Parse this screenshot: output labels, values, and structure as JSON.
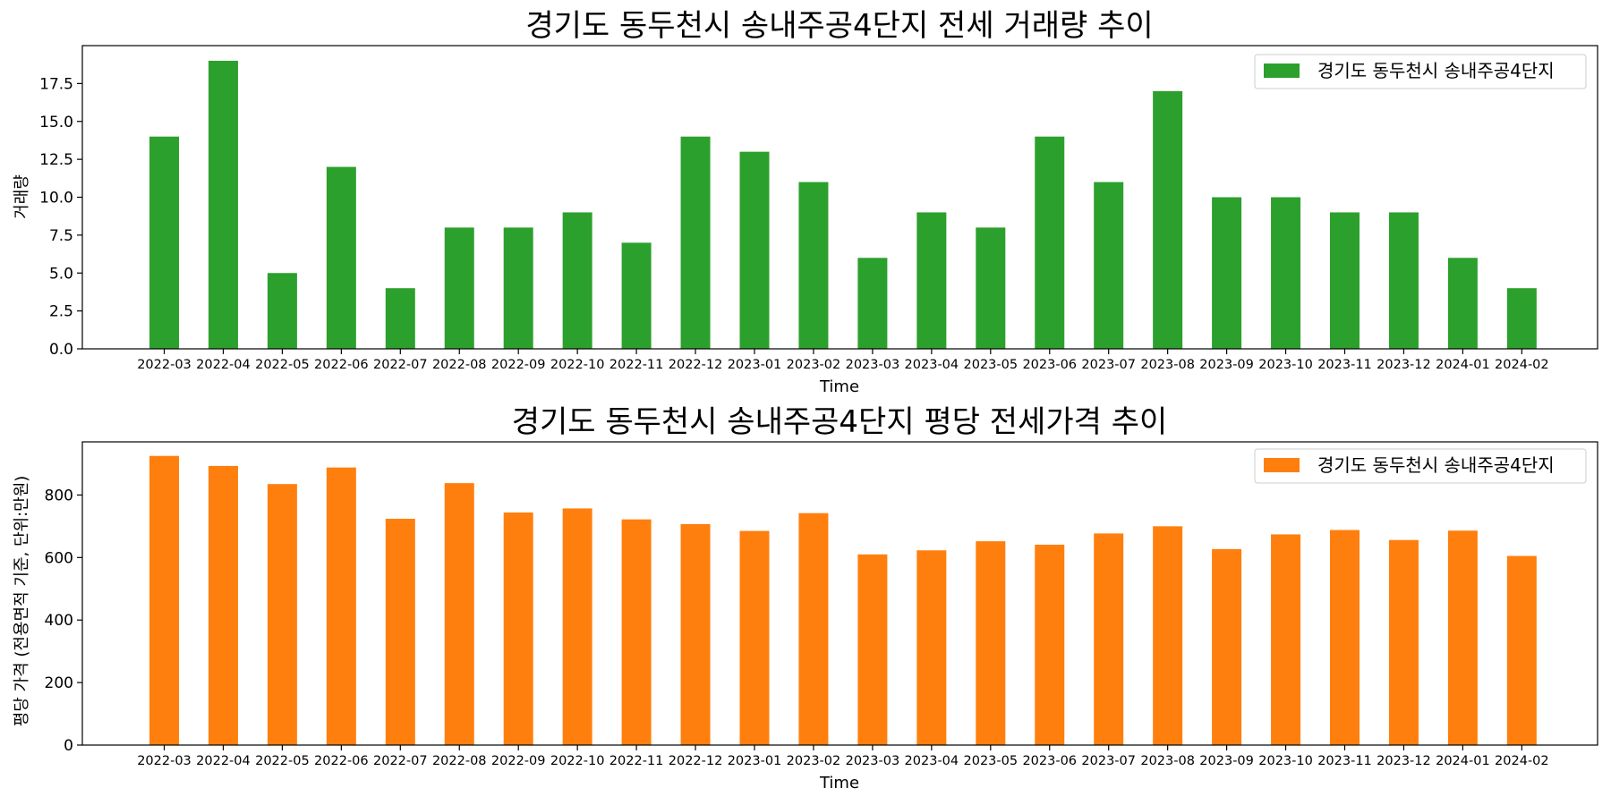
{
  "chart_data": [
    {
      "type": "bar",
      "title": "경기도 동두천시 송내주공4단지 전세 거래량 추이",
      "xlabel": "Time",
      "ylabel": "거래량",
      "color": "#2ca02c",
      "categories": [
        "2022-03",
        "2022-04",
        "2022-05",
        "2022-06",
        "2022-07",
        "2022-08",
        "2022-09",
        "2022-10",
        "2022-11",
        "2022-12",
        "2023-01",
        "2023-02",
        "2023-03",
        "2023-04",
        "2023-05",
        "2023-06",
        "2023-07",
        "2023-08",
        "2023-09",
        "2023-10",
        "2023-11",
        "2023-12",
        "2024-01",
        "2024-02"
      ],
      "series": [
        {
          "name": "경기도 동두천시 송내주공4단지",
          "values": [
            14,
            19,
            5,
            12,
            4,
            8,
            8,
            9,
            7,
            14,
            13,
            11,
            6,
            9,
            8,
            14,
            11,
            17,
            10,
            10,
            9,
            9,
            6,
            4
          ]
        }
      ],
      "ylim": [
        0,
        20
      ],
      "yticks": [
        0.0,
        2.5,
        5.0,
        7.5,
        10.0,
        12.5,
        15.0,
        17.5
      ],
      "ytick_labels": [
        "0.0",
        "2.5",
        "5.0",
        "7.5",
        "10.0",
        "12.5",
        "15.0",
        "17.5"
      ],
      "legend": "top-right",
      "grid": false
    },
    {
      "type": "bar",
      "title": "경기도 동두천시 송내주공4단지 평당 전세가격 추이",
      "xlabel": "Time",
      "ylabel": "평당 가격 (전용면적 기준, 단위:만원)",
      "color": "#ff7f0e",
      "categories": [
        "2022-03",
        "2022-04",
        "2022-05",
        "2022-06",
        "2022-07",
        "2022-08",
        "2022-09",
        "2022-10",
        "2022-11",
        "2022-12",
        "2023-01",
        "2023-02",
        "2023-03",
        "2023-04",
        "2023-05",
        "2023-06",
        "2023-07",
        "2023-08",
        "2023-09",
        "2023-10",
        "2023-11",
        "2023-12",
        "2024-01",
        "2024-02"
      ],
      "series": [
        {
          "name": "경기도 동두천시 송내주공4단지",
          "values": [
            925,
            893,
            835,
            888,
            724,
            838,
            744,
            757,
            722,
            707,
            685,
            742,
            610,
            623,
            652,
            641,
            677,
            700,
            627,
            674,
            688,
            656,
            686,
            605
          ]
        }
      ],
      "ylim": [
        0,
        970
      ],
      "yticks": [
        0,
        200,
        400,
        600,
        800
      ],
      "ytick_labels": [
        "0",
        "200",
        "400",
        "600",
        "800"
      ],
      "legend": "top-right",
      "grid": false
    }
  ]
}
